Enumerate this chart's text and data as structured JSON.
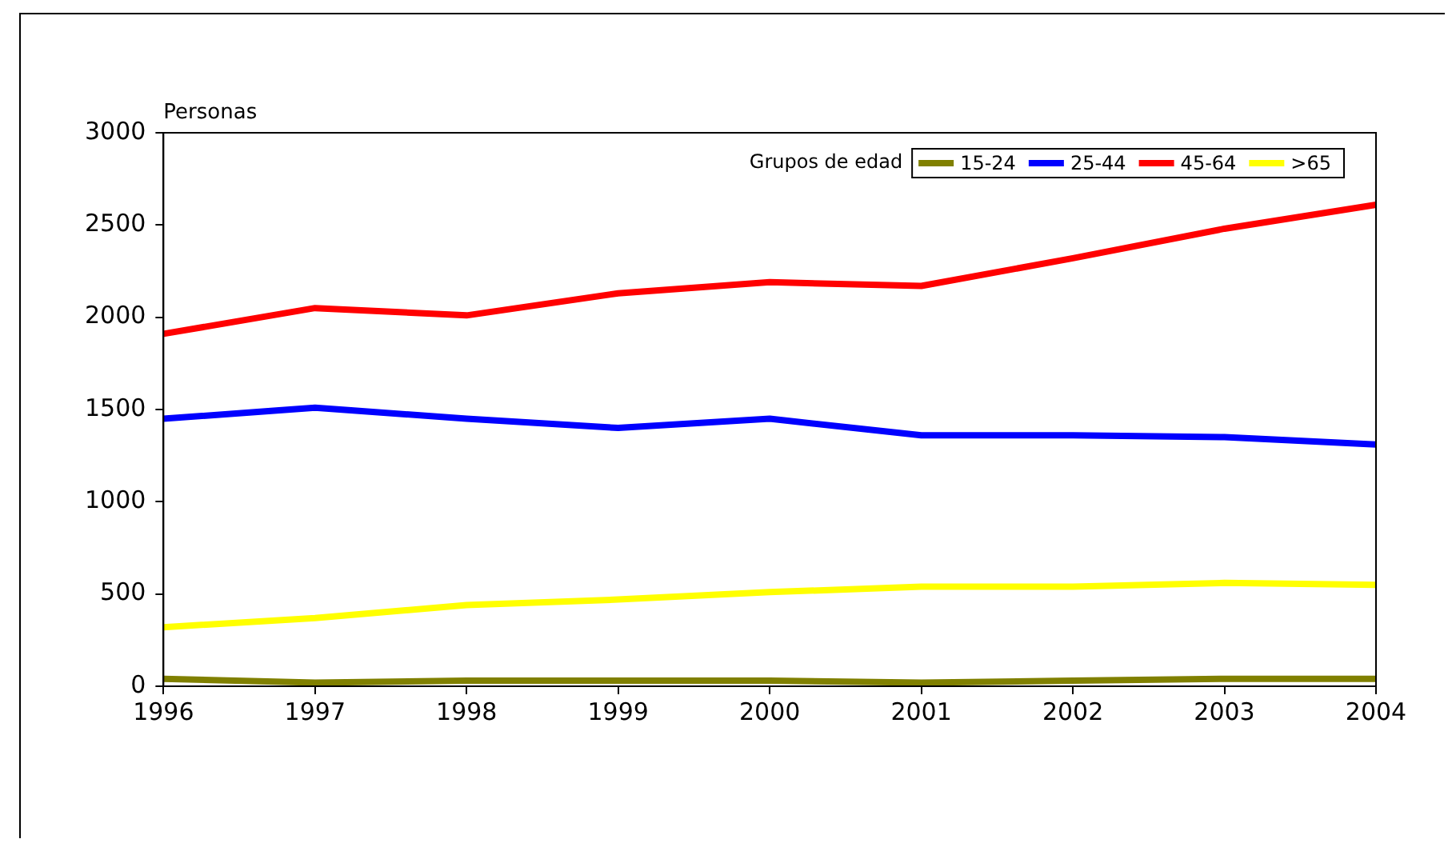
{
  "chart_data": {
    "type": "line",
    "ylabel": "Personas",
    "legend_title": "Grupos de edad",
    "categories": [
      "1996",
      "1997",
      "1998",
      "1999",
      "2000",
      "2001",
      "2002",
      "2003",
      "2004"
    ],
    "series": [
      {
        "name": "15-24",
        "color": "#808000",
        "values": [
          40,
          20,
          30,
          30,
          30,
          20,
          30,
          40,
          40
        ]
      },
      {
        "name": "25-44",
        "color": "#0000ff",
        "values": [
          1450,
          1510,
          1450,
          1400,
          1450,
          1360,
          1360,
          1350,
          1310
        ]
      },
      {
        "name": "45-64",
        "color": "#ff0000",
        "values": [
          1910,
          2050,
          2010,
          2130,
          2190,
          2170,
          2320,
          2480,
          2610
        ]
      },
      {
        "name": ">65",
        "color": "#ffff00",
        "values": [
          320,
          370,
          440,
          470,
          510,
          540,
          540,
          560,
          550
        ]
      }
    ],
    "ylim": [
      0,
      3000
    ],
    "yticks": [
      0,
      500,
      1000,
      1500,
      2000,
      2500,
      3000
    ],
    "grid": false,
    "legend": "top right",
    "marker": "none",
    "line_style": "solid"
  }
}
